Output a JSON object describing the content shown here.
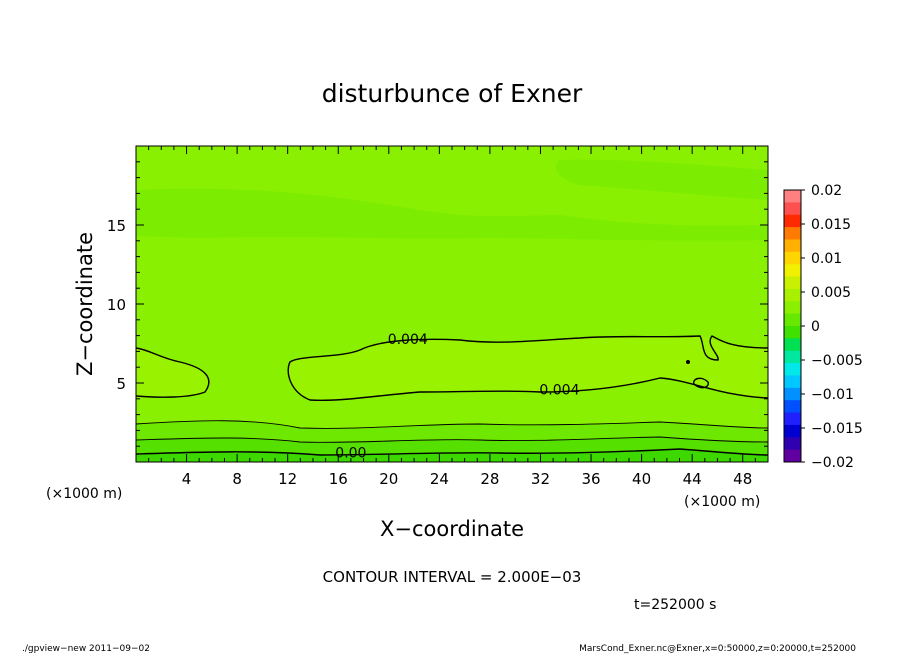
{
  "chart_data": {
    "type": "heatmap",
    "title": "disturbunce of Exner",
    "xlabel": "X−coordinate",
    "ylabel": "Z−coordinate",
    "x_unit_label": "(×1000 m)",
    "y_unit_label": "(×1000 m)",
    "xlim": [
      0,
      50
    ],
    "ylim": [
      0,
      20
    ],
    "x_ticks": [
      4,
      8,
      12,
      16,
      20,
      24,
      28,
      32,
      36,
      40,
      44,
      48
    ],
    "y_ticks": [
      5,
      10,
      15
    ],
    "colorbar": {
      "ticks": [
        "0.02",
        "0.015",
        "0.01",
        "0.005",
        "0",
        "−0.005",
        "−0.01",
        "−0.015",
        "−0.02"
      ],
      "levels": [
        0.02,
        0.015,
        0.01,
        0.005,
        0,
        -0.005,
        -0.01,
        -0.015,
        -0.02
      ],
      "colors": [
        "#ff8080",
        "#ff5050",
        "#ff2a00",
        "#ff7a00",
        "#ffb000",
        "#ffd500",
        "#f0f000",
        "#c8f000",
        "#a8f000",
        "#8af000",
        "#66e800",
        "#40e000",
        "#00e050",
        "#00e8a0",
        "#00e8e8",
        "#00c8ff",
        "#0090ff",
        "#0050ff",
        "#2020ff",
        "#0000d0",
        "#3000b0",
        "#6000a0"
      ]
    },
    "contour_labels": [
      {
        "text": "0.004",
        "x": 21.5,
        "z": 7.8
      },
      {
        "text": "0.004",
        "x": 33.5,
        "z": 4.6
      },
      {
        "text": "0.00",
        "x": 17.0,
        "z": 0.6
      }
    ],
    "contour_interval": "CONTOUR INTERVAL = 2.000E−03",
    "time_label": "t=252000 s"
  },
  "footer": {
    "left": "./gpview−new  2011−09−02",
    "right": "MarsCond_Exner.nc@Exner,x=0:50000,z=0:20000,t=252000"
  },
  "colors": {
    "background_main": "#88f000",
    "upper_band": "#7cec00",
    "mid_high": "#98f200",
    "low_band": "#64e400",
    "bottom_band": "#44dc00"
  }
}
